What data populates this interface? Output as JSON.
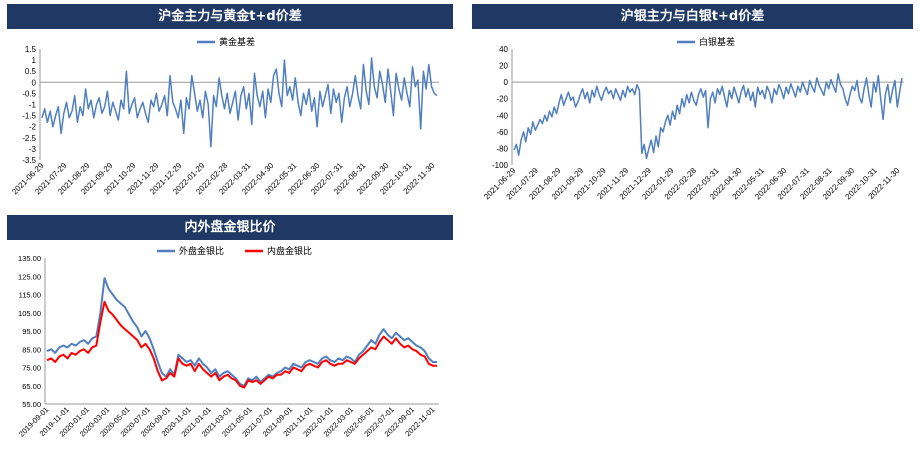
{
  "colors": {
    "header_bg": "#1f3864",
    "series_blue": "#4f7fbf",
    "series_red": "#ff0000",
    "axis": "#999999"
  },
  "chart_data": [
    {
      "type": "line",
      "title": "沪金主力与黄金t+d价差",
      "xlabel": "",
      "ylabel": "",
      "x_ticks": [
        "2021-06-29",
        "2021-07-29",
        "2021-08-29",
        "2021-09-29",
        "2021-10-29",
        "2021-11-29",
        "2021-12-29",
        "2022-01-29",
        "2022-02-28",
        "2022-03-31",
        "2022-04-30",
        "2022-05-31",
        "2022-06-30",
        "2022-07-31",
        "2022-08-31",
        "2022-09-30",
        "2022-10-31",
        "2022-11-30"
      ],
      "y_ticks": [
        "1.5",
        "1",
        "0.5",
        "0",
        "-0.5",
        "-1",
        "-1.5",
        "-2",
        "-2.5",
        "-3",
        "-3.5"
      ],
      "ylim": [
        -3.5,
        1.5
      ],
      "legend_position": "top-center",
      "series": [
        {
          "name": "黄金基差",
          "values": [
            -1.6,
            -1.2,
            -1.8,
            -1.3,
            -2.0,
            -1.5,
            -1.1,
            -2.3,
            -1.4,
            -0.9,
            -1.6,
            -1.3,
            -0.6,
            -1.8,
            -1.1,
            -1.5,
            -0.3,
            -1.2,
            -0.8,
            -1.6,
            -1.0,
            -0.7,
            -1.4,
            -1.1,
            -0.4,
            -1.5,
            -0.9,
            -1.3,
            -1.7,
            -0.8,
            -1.2,
            0.5,
            -1.4,
            -1.0,
            -0.7,
            -1.6,
            -1.2,
            -0.9,
            -1.4,
            -1.8,
            -0.8,
            -1.1,
            -0.5,
            -1.3,
            -1.0,
            -0.6,
            -1.5,
            0.3,
            -0.9,
            -1.2,
            -1.6,
            -0.8,
            -2.3,
            -0.7,
            -1.2,
            0.3,
            -0.5,
            -1.3,
            -0.8,
            -1.6,
            -0.4,
            -1.0,
            -2.9,
            -0.6,
            -1.1,
            0.2,
            -0.6,
            -1.2,
            -0.5,
            -1.4,
            -0.9,
            -0.4,
            -1.7,
            -0.6,
            -0.2,
            -1.2,
            -0.5,
            -1.9,
            0.4,
            -0.6,
            -1.1,
            -0.4,
            -1.6,
            -0.3,
            -0.9,
            0.3,
            0.6,
            -0.5,
            -1.1,
            1.0,
            -0.6,
            -0.2,
            -0.8,
            0.2,
            -0.9,
            -1.5,
            -0.5,
            -1.0,
            -0.3,
            -1.3,
            -0.7,
            -2.0,
            -0.4,
            -1.1,
            -0.6,
            -0.1,
            -1.4,
            -0.3,
            -0.9,
            -0.5,
            -1.8,
            -0.7,
            -0.2,
            -1.1,
            -0.5,
            0.3,
            -0.6,
            -1.2,
            0.8,
            -0.4,
            -1.0,
            1.1,
            -0.2,
            -0.7,
            0.5,
            -0.1,
            -0.9,
            0.6,
            -0.4,
            -1.5,
            0.4,
            -0.3,
            -0.8,
            0.2,
            -0.5,
            -1.1,
            0.7,
            -0.2,
            0.1,
            -2.1,
            0.5,
            -0.3,
            0.8,
            -0.2,
            -0.5,
            -0.6
          ]
        }
      ]
    },
    {
      "type": "line",
      "title": "沪银主力与白银t+d价差",
      "xlabel": "",
      "ylabel": "",
      "x_ticks": [
        "2021-06-29",
        "2021-07-29",
        "2021-08-29",
        "2021-09-29",
        "2021-10-29",
        "2021-11-29",
        "2021-12-29",
        "2022-01-29",
        "2022-02-28",
        "2022-03-31",
        "2022-04-30",
        "2022-05-31",
        "2022-06-30",
        "2022-07-31",
        "2022-08-31",
        "2022-09-30",
        "2022-10-31",
        "2022-11-30"
      ],
      "y_ticks": [
        "40",
        "20",
        "0",
        "-20",
        "-40",
        "-60",
        "-80",
        "-100"
      ],
      "ylim": [
        -100,
        40
      ],
      "legend_position": "top-center",
      "series": [
        {
          "name": "白银基差",
          "values": [
            -82,
            -75,
            -88,
            -70,
            -60,
            -72,
            -55,
            -63,
            -48,
            -58,
            -52,
            -45,
            -50,
            -40,
            -47,
            -35,
            -42,
            -30,
            -38,
            -25,
            -15,
            -28,
            -20,
            -12,
            -22,
            -18,
            -30,
            -24,
            -15,
            -8,
            -20,
            -12,
            -25,
            -10,
            -18,
            -5,
            -15,
            -22,
            -12,
            -6,
            -14,
            -10,
            -20,
            -8,
            -15,
            -22,
            -10,
            -18,
            -5,
            -12,
            -8,
            -15,
            -3,
            -10,
            -86,
            -75,
            -92,
            -80,
            -70,
            -85,
            -65,
            -78,
            -55,
            -60,
            -48,
            -40,
            -52,
            -35,
            -45,
            -28,
            -38,
            -20,
            -30,
            -15,
            -25,
            -12,
            -22,
            -28,
            -15,
            -8,
            -18,
            -10,
            -55,
            -20,
            -12,
            -25,
            -8,
            -15,
            -5,
            -18,
            -30,
            -10,
            -20,
            -6,
            -15,
            -25,
            -12,
            -4,
            -18,
            -8,
            -22,
            -12,
            -30,
            -6,
            -15,
            -10,
            -20,
            -5,
            -12,
            -25,
            -8,
            -15,
            -3,
            -10,
            -20,
            -6,
            -14,
            -2,
            -10,
            -18,
            -5,
            -12,
            0,
            -8,
            -15,
            2,
            -6,
            -12,
            5,
            -4,
            -10,
            -16,
            0,
            -8,
            3,
            -5,
            -12,
            10,
            -3,
            -8,
            -20,
            -28,
            -15,
            -5,
            -10,
            2,
            -18,
            -25,
            -8,
            5,
            -15,
            -30,
            0,
            -12,
            8,
            -20,
            -45,
            -15,
            -3,
            -25,
            -10,
            2,
            -30,
            -12,
            5
          ]
        }
      ]
    },
    {
      "type": "line",
      "title": "内外盘金银比价",
      "xlabel": "",
      "ylabel": "",
      "x_ticks": [
        "2019-09-01",
        "2019-11-01",
        "2020-01-01",
        "2020-03-01",
        "2020-05-01",
        "2020-07-01",
        "2020-09-01",
        "2020-11-01",
        "2021-01-01",
        "2021-03-01",
        "2021-05-01",
        "2021-07-01",
        "2021-09-01",
        "2021-11-01",
        "2022-01-01",
        "2022-03-01",
        "2022-05-01",
        "2022-07-01",
        "2022-09-01",
        "2022-11-01"
      ],
      "y_ticks": [
        "135.00",
        "125.00",
        "115.00",
        "105.00",
        "95.00",
        "85.00",
        "75.00",
        "65.00",
        "55.00"
      ],
      "ylim": [
        55,
        135
      ],
      "legend_position": "top-center",
      "series": [
        {
          "name": "外盘金银比",
          "values": [
            84,
            85,
            83,
            86,
            87,
            86,
            88,
            87,
            89,
            90,
            88,
            91,
            92,
            105,
            124,
            118,
            115,
            112,
            110,
            108,
            104,
            100,
            97,
            92,
            95,
            91,
            85,
            78,
            72,
            70,
            74,
            71,
            82,
            80,
            78,
            79,
            76,
            80,
            77,
            75,
            72,
            74,
            70,
            72,
            73,
            71,
            69,
            66,
            65,
            69,
            68,
            70,
            67,
            69,
            71,
            70,
            72,
            73,
            75,
            74,
            77,
            76,
            75,
            78,
            79,
            78,
            77,
            80,
            81,
            79,
            78,
            80,
            79,
            81,
            80,
            78,
            82,
            84,
            87,
            90,
            88,
            93,
            96,
            93,
            91,
            94,
            92,
            90,
            91,
            89,
            87,
            86,
            84,
            80,
            78,
            78
          ]
        },
        {
          "name": "内盘金银比",
          "values": [
            79,
            80,
            78,
            81,
            82,
            80,
            83,
            82,
            84,
            85,
            83,
            86,
            87,
            100,
            111,
            106,
            104,
            101,
            98,
            96,
            94,
            92,
            90,
            86,
            88,
            85,
            80,
            73,
            68,
            69,
            72,
            70,
            80,
            77,
            76,
            77,
            73,
            77,
            74,
            72,
            70,
            72,
            68,
            70,
            71,
            69,
            68,
            65,
            64,
            68,
            67,
            68,
            66,
            68,
            70,
            69,
            71,
            71,
            73,
            72,
            75,
            74,
            73,
            76,
            77,
            76,
            75,
            78,
            79,
            77,
            76,
            77,
            77,
            79,
            78,
            77,
            80,
            82,
            84,
            86,
            85,
            89,
            92,
            90,
            88,
            91,
            88,
            86,
            87,
            85,
            84,
            82,
            81,
            77,
            76,
            76
          ]
        }
      ]
    }
  ]
}
